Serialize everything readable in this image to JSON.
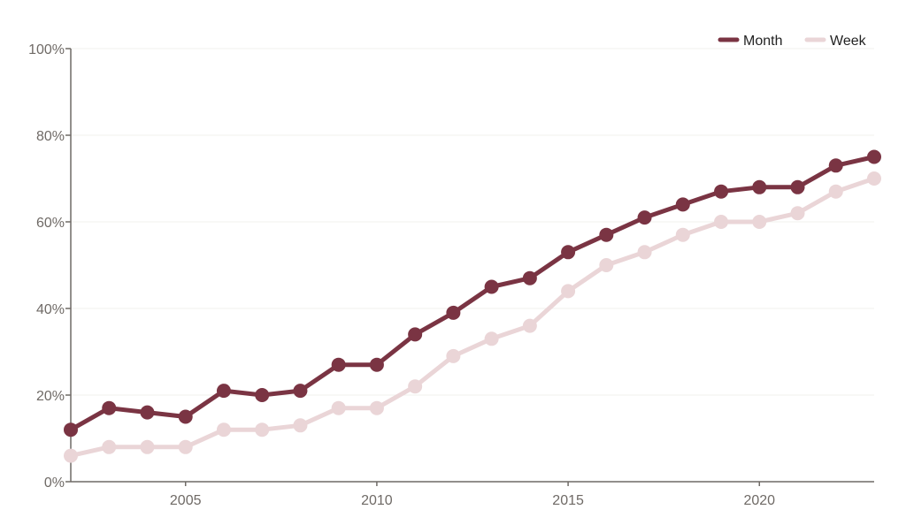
{
  "chart_data": {
    "type": "line",
    "x": [
      2002,
      2003,
      2004,
      2005,
      2006,
      2007,
      2008,
      2009,
      2010,
      2011,
      2012,
      2013,
      2014,
      2015,
      2016,
      2017,
      2018,
      2019,
      2020,
      2021,
      2022,
      2023
    ],
    "series": [
      {
        "name": "Month",
        "color": "#7a3443",
        "values": [
          12,
          17,
          16,
          15,
          21,
          20,
          21,
          27,
          27,
          34,
          39,
          45,
          47,
          53,
          57,
          61,
          64,
          67,
          68,
          68,
          73,
          75
        ]
      },
      {
        "name": "Week",
        "color": "#ead5d7",
        "values": [
          6,
          8,
          8,
          8,
          12,
          12,
          13,
          17,
          17,
          22,
          29,
          33,
          36,
          44,
          50,
          53,
          57,
          60,
          60,
          62,
          67,
          70
        ]
      }
    ],
    "xticks": [
      2005,
      2010,
      2015,
      2020
    ],
    "xtick_labels": [
      "2005",
      "2010",
      "2015",
      "2020"
    ],
    "yticks": [
      0,
      20,
      40,
      60,
      80,
      100
    ],
    "ytick_labels": [
      "0%",
      "20%",
      "40%",
      "60%",
      "80%",
      "100%"
    ],
    "xlim": [
      2002,
      2023
    ],
    "ylim": [
      0,
      100
    ],
    "title": "",
    "xlabel": "",
    "ylabel": "",
    "grid": true,
    "legend_position": "top-right"
  }
}
